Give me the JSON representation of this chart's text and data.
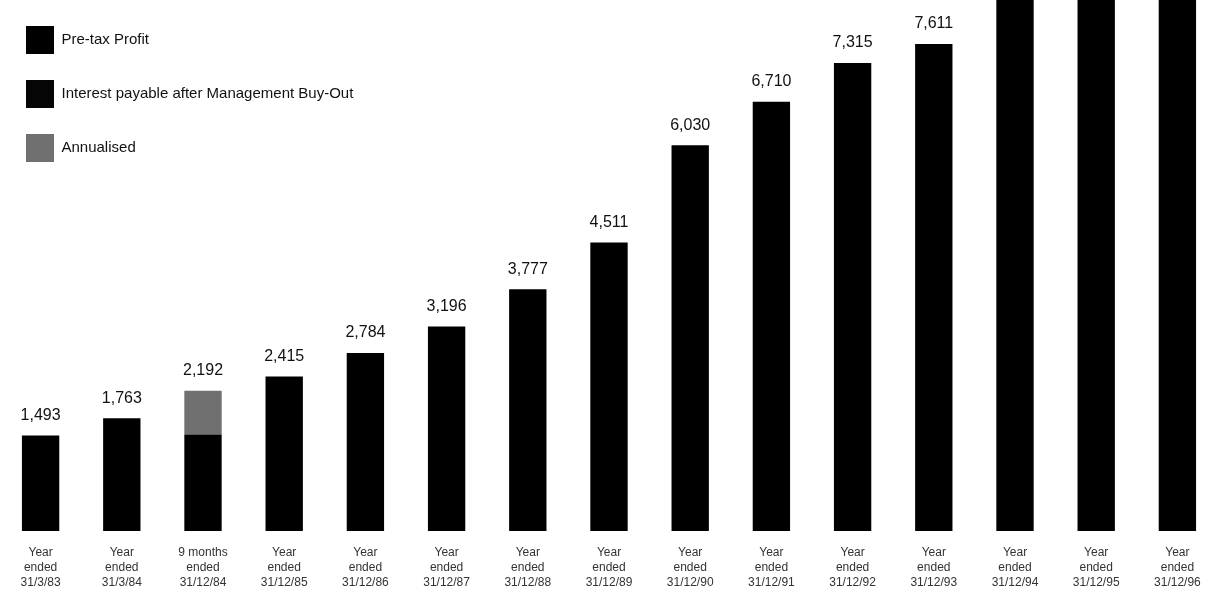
{
  "chart_data": {
    "type": "bar",
    "stacked": true,
    "legend": "top left",
    "grid": false,
    "categories": [
      "Year\nended\n31/3/83",
      "Year\nended\n31/3/84",
      "9 months\nended\n31/12/84",
      "Year\nended\n31/12/85",
      "Year\nended\n31/12/86",
      "Year\nended\n31/12/87",
      "Year\nended\n31/12/88",
      "Year\nended\n31/12/89",
      "Year\nended\n31/12/90",
      "Year\nended\n31/12/91",
      "Year\nended\n31/12/92",
      "Year\nended\n31/12/93",
      "Year\nended\n31/12/94",
      "Year\nended\n31/12/95",
      "Year\nended\n31/12/96"
    ],
    "series": [
      {
        "name": "Pre-tax Profit",
        "color": "#000000",
        "values": [
          1493,
          1763,
          1510,
          2415,
          2784,
          3196,
          3777,
          4511,
          6030,
          6710,
          7315,
          7611,
          8300,
          8300,
          8300
        ],
        "value_labels": [
          "1,493",
          "1,763",
          null,
          "2,415",
          "2,784",
          "3,196",
          "3,777",
          "4,511",
          "6,030",
          "6,710",
          "7,315",
          "7,611",
          null,
          null,
          null
        ]
      },
      {
        "name": "Interest payable after Management Buy-Out",
        "color": "#050505",
        "values": [
          null,
          null,
          null,
          null,
          null,
          null,
          null,
          null,
          null,
          null,
          null,
          null,
          null,
          null,
          null
        ]
      },
      {
        "name": "Annualised",
        "color": "#707070",
        "values": [
          null,
          null,
          682,
          null,
          null,
          null,
          null,
          null,
          null,
          null,
          null,
          null,
          null,
          null,
          null
        ]
      }
    ],
    "totals": [
      null,
      null,
      "2,192",
      null,
      null,
      null,
      null,
      null,
      null,
      null,
      null,
      null,
      null,
      null,
      null
    ],
    "tick_labels": "x"
  }
}
